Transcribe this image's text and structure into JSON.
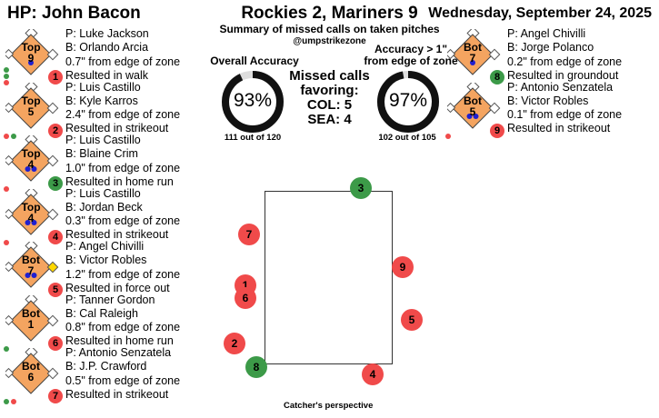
{
  "header": {
    "umpire": "HP: John Bacon",
    "title": "Rockies 2, Mariners 9",
    "subtitle": "Summary of missed calls on taken pitches",
    "handle": "@umpstrikezone",
    "date": "Wednesday, September 24, 2025"
  },
  "accuracy": {
    "overall_label": "Overall Accuracy",
    "overall_value": "93%",
    "overall_fraction": 0.93,
    "overall_sub": "111 out of 120",
    "adj_label_line1": "Accuracy > 1\"",
    "adj_label_line2": "from edge of zone",
    "adj_value": "97%",
    "adj_fraction": 0.97,
    "adj_sub": "102 out of 105"
  },
  "favoring": {
    "line1": "Missed calls",
    "line2": "favoring:",
    "col": "COL: 5",
    "sea": "SEA: 4"
  },
  "colors": {
    "diamond_fill": "#f4a460",
    "missed_red": "#f04a4a",
    "correct_green": "#3c9a48",
    "runner_yellow": "#ffd700",
    "ball_blue": "#1f1fd0"
  },
  "left_cards": [
    {
      "half": "Top",
      "inning": "9",
      "pitcher": "P: Luke Jackson",
      "batter": "B: Orlando Arcia",
      "dist": "0.7\" from edge of zone",
      "result": "Resulted in walk",
      "num": "1",
      "num_color": "red",
      "count_dots": [
        "green",
        "green",
        "red"
      ],
      "out_dots": [
        "blue"
      ],
      "runners": []
    },
    {
      "half": "Top",
      "inning": "5",
      "pitcher": "P: Luis Castillo",
      "batter": "B: Kyle Karros",
      "dist": "2.4\" from edge of zone",
      "result": "Resulted in strikeout",
      "num": "2",
      "num_color": "red",
      "count_dots": [
        "red",
        "green"
      ],
      "out_dots": [],
      "runners": []
    },
    {
      "half": "Top",
      "inning": "4",
      "pitcher": "P: Luis Castillo",
      "batter": "B: Blaine Crim",
      "dist": "1.0\" from edge of zone",
      "result": "Resulted in home run",
      "num": "3",
      "num_color": "green",
      "count_dots": [
        "red"
      ],
      "out_dots": [
        "blue",
        "blue"
      ],
      "runners": []
    },
    {
      "half": "Top",
      "inning": "4",
      "pitcher": "P: Luis Castillo",
      "batter": "B: Jordan Beck",
      "dist": "0.3\" from edge of zone",
      "result": "Resulted in strikeout",
      "num": "4",
      "num_color": "red",
      "count_dots": [
        "red"
      ],
      "out_dots": [
        "blue",
        "blue"
      ],
      "runners": []
    },
    {
      "half": "Bot",
      "inning": "7",
      "pitcher": "P: Angel Chivilli",
      "batter": "B: Victor Robles",
      "dist": "1.2\" from edge of zone",
      "result": "Resulted in force out",
      "num": "5",
      "num_color": "red",
      "count_dots": [],
      "out_dots": [
        "blue",
        "blue"
      ],
      "runners": [
        "first"
      ]
    },
    {
      "half": "Bot",
      "inning": "1",
      "pitcher": "P: Tanner Gordon",
      "batter": "B: Cal Raleigh",
      "dist": "0.8\" from edge of zone",
      "result": "Resulted in home run",
      "num": "6",
      "num_color": "red",
      "count_dots": [
        "green"
      ],
      "out_dots": [],
      "runners": []
    },
    {
      "half": "Bot",
      "inning": "6",
      "pitcher": "P: Antonio Senzatela",
      "batter": "B: J.P. Crawford",
      "dist": "0.5\" from edge of zone",
      "result": "Resulted in strikeout",
      "num": "7",
      "num_color": "red",
      "count_dots": [
        "green",
        "red"
      ],
      "out_dots": [],
      "runners": []
    }
  ],
  "right_cards": [
    {
      "half": "Bot",
      "inning": "7",
      "pitcher": "P: Angel Chivilli",
      "batter": "B: Jorge Polanco",
      "dist": "0.2\" from edge of zone",
      "result": "Resulted in groundout",
      "num": "8",
      "num_color": "green",
      "count_dots": [],
      "out_dots": [
        "blue"
      ],
      "runners": []
    },
    {
      "half": "Bot",
      "inning": "5",
      "pitcher": "P: Antonio Senzatela",
      "batter": "B: Victor Robles",
      "dist": "0.1\" from edge of zone",
      "result": "Resulted in strikeout",
      "num": "9",
      "num_color": "red",
      "count_dots": [
        "red"
      ],
      "out_dots": [
        "blue",
        "blue"
      ],
      "runners": []
    }
  ],
  "pitches": [
    {
      "num": "1",
      "color": "red"
    },
    {
      "num": "2",
      "color": "red"
    },
    {
      "num": "3",
      "color": "green"
    },
    {
      "num": "4",
      "color": "red"
    },
    {
      "num": "5",
      "color": "red"
    },
    {
      "num": "6",
      "color": "red"
    },
    {
      "num": "7",
      "color": "red"
    },
    {
      "num": "8",
      "color": "green"
    },
    {
      "num": "9",
      "color": "red"
    }
  ],
  "caption": "Catcher's perspective"
}
